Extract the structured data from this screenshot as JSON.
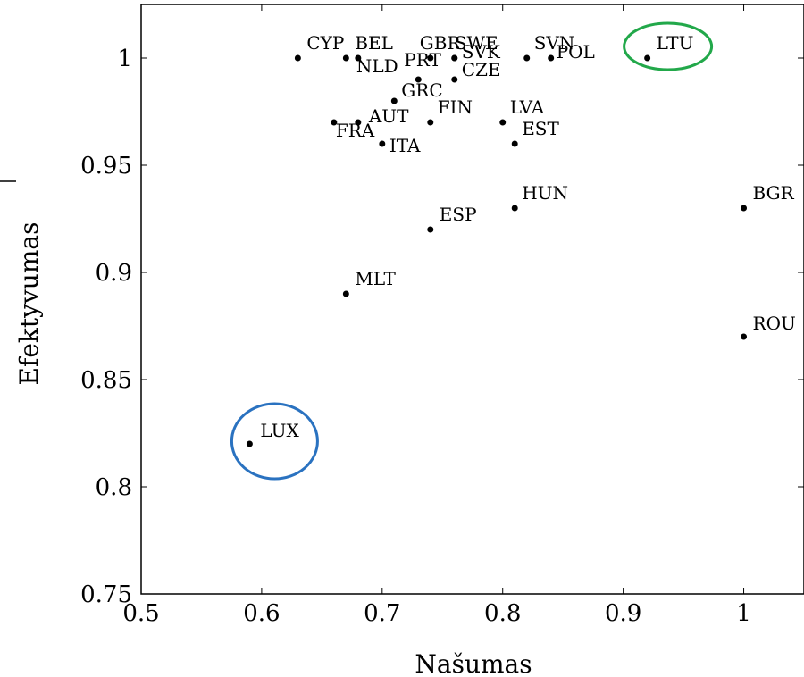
{
  "chart_data": {
    "type": "scatter",
    "xlabel": "Našumas",
    "ylabel": "Efektyvumas",
    "xlim": [
      0.5,
      1.05
    ],
    "ylim": [
      0.75,
      1.025
    ],
    "x_ticks": [
      0.5,
      0.6,
      0.7,
      0.8,
      0.9,
      1
    ],
    "x_tick_labels": [
      "0.5",
      "0.6",
      "0.7",
      "0.8",
      "0.9",
      "1"
    ],
    "y_ticks": [
      0.75,
      0.8,
      0.85,
      0.9,
      0.95,
      1
    ],
    "y_tick_labels": [
      "0.75",
      "0.8",
      "0.85",
      "0.9",
      "0.95",
      "1"
    ],
    "grid": false,
    "points": [
      {
        "label": "CYP",
        "x": 0.63,
        "y": 1.0
      },
      {
        "label": "BEL",
        "x": 0.67,
        "y": 1.0
      },
      {
        "label": "NLD",
        "x": 0.68,
        "y": 1.0
      },
      {
        "label": "PRT",
        "x": 0.73,
        "y": 0.99
      },
      {
        "label": "GBR",
        "x": 0.74,
        "y": 1.0
      },
      {
        "label": "SWE",
        "x": 0.76,
        "y": 1.0
      },
      {
        "label": "SVK",
        "x": 0.76,
        "y": 1.0
      },
      {
        "label": "CZE",
        "x": 0.76,
        "y": 0.99
      },
      {
        "label": "SVN",
        "x": 0.82,
        "y": 1.0
      },
      {
        "label": "POL",
        "x": 0.84,
        "y": 1.0
      },
      {
        "label": "LTU",
        "x": 0.92,
        "y": 1.0
      },
      {
        "label": "GRC",
        "x": 0.71,
        "y": 0.98
      },
      {
        "label": "AUT",
        "x": 0.68,
        "y": 0.97
      },
      {
        "label": "FRA",
        "x": 0.66,
        "y": 0.97
      },
      {
        "label": "ITA",
        "x": 0.7,
        "y": 0.96
      },
      {
        "label": "FIN",
        "x": 0.74,
        "y": 0.97
      },
      {
        "label": "LVA",
        "x": 0.8,
        "y": 0.97
      },
      {
        "label": "EST",
        "x": 0.81,
        "y": 0.96
      },
      {
        "label": "HUN",
        "x": 0.81,
        "y": 0.93
      },
      {
        "label": "ESP",
        "x": 0.74,
        "y": 0.92
      },
      {
        "label": "BGR",
        "x": 1.0,
        "y": 0.93
      },
      {
        "label": "MLT",
        "x": 0.67,
        "y": 0.89
      },
      {
        "label": "ROU",
        "x": 1.0,
        "y": 0.87
      },
      {
        "label": "LUX",
        "x": 0.59,
        "y": 0.82
      }
    ],
    "highlights": [
      {
        "target": "LTU",
        "color": "#22a84a"
      },
      {
        "target": "LUX",
        "color": "#2a72c0"
      }
    ],
    "point_color": "#000000"
  }
}
